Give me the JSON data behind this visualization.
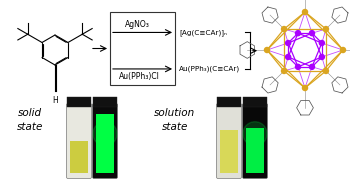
{
  "background_color": "#ffffff",
  "fig_width": 3.5,
  "fig_height": 1.89,
  "dpi": 100,
  "top_reagent": "AgNO₃",
  "top_product": "[Ag(C≡CAr)]ₙ",
  "bottom_reagent": "Au(PPh₃)Cl",
  "bottom_product": "Au(PPh₃)(C≡CAr)",
  "solid_state_label": "solid\nstate",
  "solution_state_label": "solution\nstate",
  "label_fontsize": 7.5,
  "reagent_fontsize": 5.5,
  "small_fontsize": 5.2,
  "text_color": "#000000",
  "arrow_color": "#000000",
  "box_color": "#333333",
  "cluster_au_color": "#DAA520",
  "cluster_ag_color": "#AA00FF"
}
